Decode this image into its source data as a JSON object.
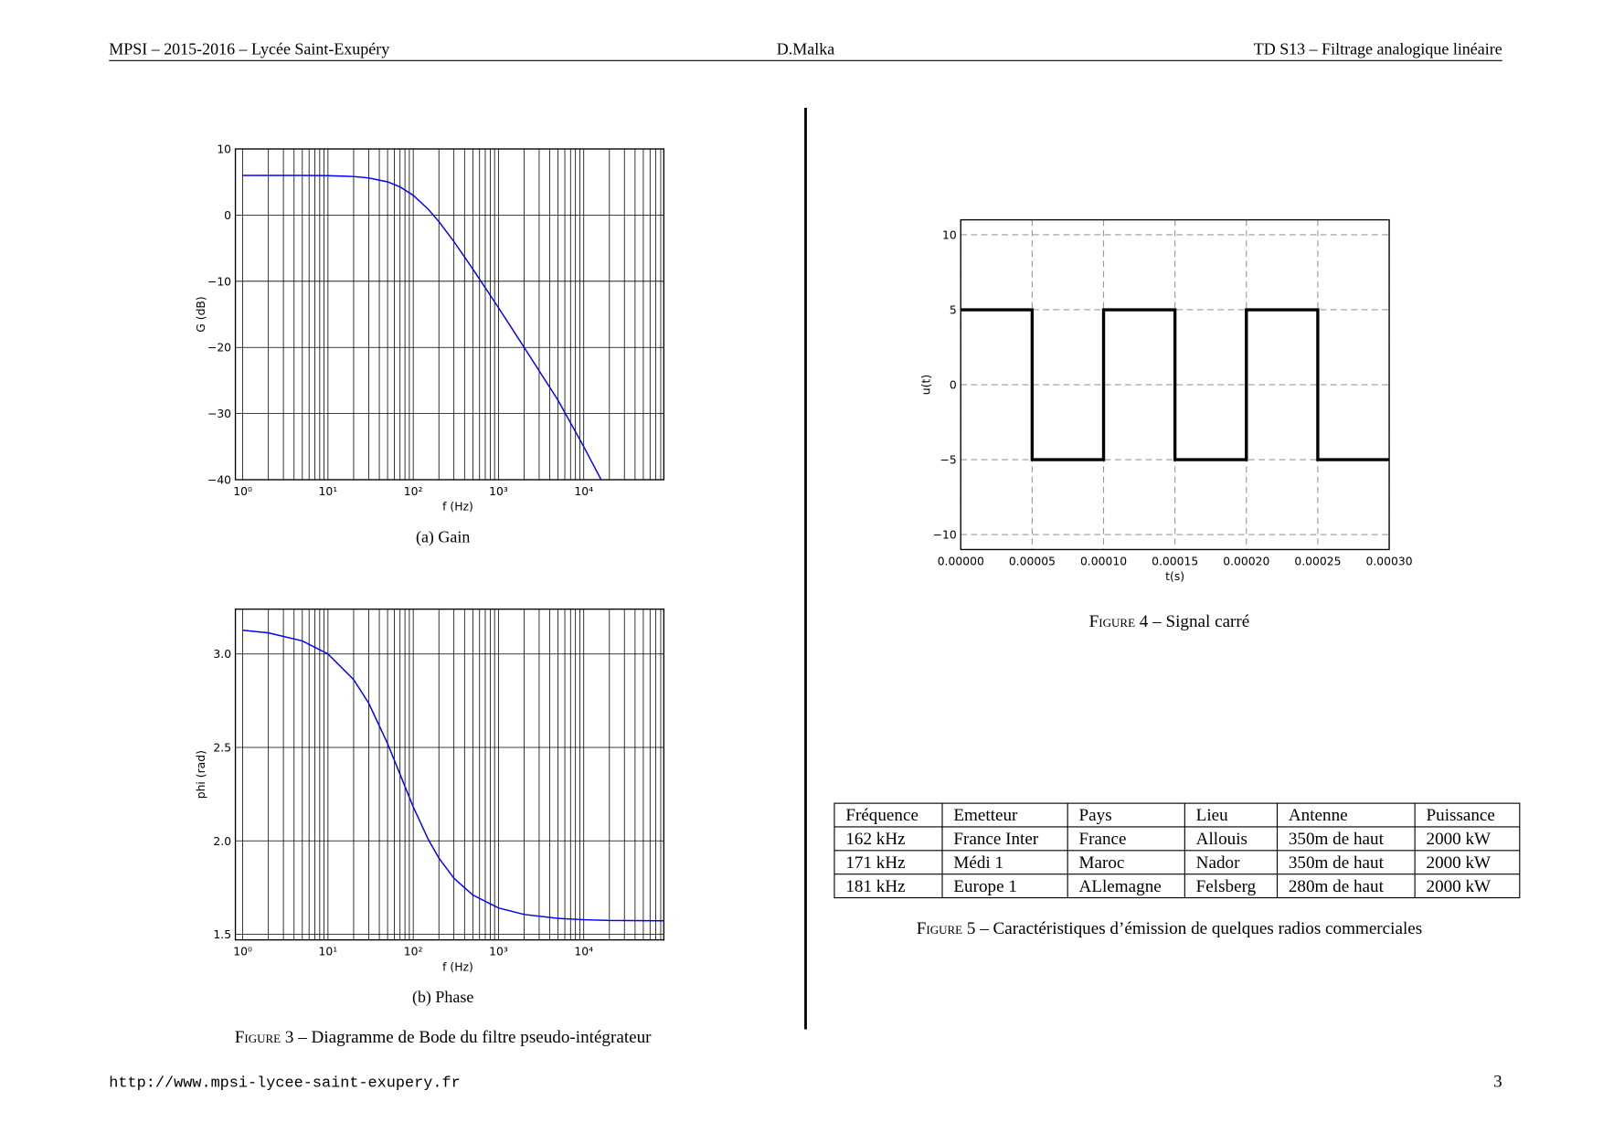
{
  "header": {
    "left": "MPSI – 2015-2016 – Lycée Saint-Exupéry",
    "center": "D.Malka",
    "right": "TD S13 – Filtrage analogique linéaire"
  },
  "chart_data": [
    {
      "type": "line",
      "xlabel": "f (Hz)",
      "ylabel": "G (dB)",
      "caption": "(a) Gain",
      "xscale": "log",
      "grid": "solid",
      "xlim": [
        0.82,
        87000
      ],
      "ylim": [
        -40,
        10
      ],
      "xticks": [
        {
          "value": 1,
          "label": "10⁰"
        },
        {
          "value": 10,
          "label": "10¹"
        },
        {
          "value": 100,
          "label": "10²"
        },
        {
          "value": 1000,
          "label": "10³"
        },
        {
          "value": 10000,
          "label": "10⁴"
        }
      ],
      "xticks_minor": [
        2,
        3,
        4,
        5,
        6,
        7,
        8,
        9,
        20,
        30,
        40,
        50,
        60,
        70,
        80,
        90,
        200,
        300,
        400,
        500,
        600,
        700,
        800,
        900,
        2000,
        3000,
        4000,
        5000,
        6000,
        7000,
        8000,
        9000,
        20000,
        30000,
        40000,
        50000,
        60000,
        70000,
        80000
      ],
      "yticks": [
        {
          "value": -40,
          "label": "−40"
        },
        {
          "value": -30,
          "label": "−30"
        },
        {
          "value": -20,
          "label": "−20"
        },
        {
          "value": -10,
          "label": "−10"
        },
        0,
        10
      ],
      "x": [
        1,
        2,
        5,
        10,
        20,
        30,
        50,
        70,
        100,
        150,
        200,
        300,
        500,
        1000,
        2000,
        5000,
        10000,
        16000
      ],
      "series": [
        {
          "color": "#0000ff",
          "values": [
            6.0,
            6.0,
            5.99,
            5.96,
            5.83,
            5.62,
            5.03,
            4.26,
            2.99,
            0.89,
            -0.99,
            -4.0,
            -8.15,
            -14.0,
            -20.0,
            -28.0,
            -35.0,
            -40.0
          ]
        }
      ]
    },
    {
      "type": "line",
      "xlabel": "f (Hz)",
      "ylabel": "phi (rad)",
      "caption": "(b) Phase",
      "xscale": "log",
      "grid": "solid",
      "xlim": [
        0.82,
        87000
      ],
      "ylim": [
        1.47,
        3.24
      ],
      "xticks": [
        {
          "value": 1,
          "label": "10⁰"
        },
        {
          "value": 10,
          "label": "10¹"
        },
        {
          "value": 100,
          "label": "10²"
        },
        {
          "value": 1000,
          "label": "10³"
        },
        {
          "value": 10000,
          "label": "10⁴"
        }
      ],
      "xticks_minor": [
        2,
        3,
        4,
        5,
        6,
        7,
        8,
        9,
        20,
        30,
        40,
        50,
        60,
        70,
        80,
        90,
        200,
        300,
        400,
        500,
        600,
        700,
        800,
        900,
        2000,
        3000,
        4000,
        5000,
        6000,
        7000,
        8000,
        9000,
        20000,
        30000,
        40000,
        50000,
        60000,
        70000,
        80000
      ],
      "yticks": [
        1.5,
        {
          "value": 2,
          "label": "2.0"
        },
        2.5,
        {
          "value": 3,
          "label": "3.0"
        }
      ],
      "x": [
        1,
        2,
        5,
        10,
        20,
        30,
        50,
        70,
        100,
        150,
        200,
        300,
        500,
        1000,
        2000,
        5000,
        10000,
        20000,
        87000
      ],
      "series": [
        {
          "color": "#0000ff",
          "values": [
            3.127,
            3.113,
            3.07,
            3.0,
            2.863,
            2.737,
            2.521,
            2.356,
            2.182,
            2.008,
            1.908,
            1.8,
            1.71,
            1.641,
            1.606,
            1.585,
            1.578,
            1.574,
            1.572
          ]
        }
      ]
    },
    {
      "type": "line",
      "xlabel": "t(s)",
      "ylabel": "u(t)",
      "xscale": "linear",
      "grid": "dashed",
      "xlim": [
        0,
        0.0003
      ],
      "ylim": [
        -11,
        11
      ],
      "xticks": [
        {
          "value": 0,
          "label": "0.00000"
        },
        {
          "value": 5e-05,
          "label": "0.00005"
        },
        {
          "value": 0.0001,
          "label": "0.00010"
        },
        {
          "value": 0.00015,
          "label": "0.00015"
        },
        {
          "value": 0.0002,
          "label": "0.00020"
        },
        {
          "value": 0.00025,
          "label": "0.00025"
        },
        {
          "value": 0.0003,
          "label": "0.00030"
        }
      ],
      "yticks": [
        {
          "value": -10,
          "label": "−10"
        },
        {
          "value": -5,
          "label": "−5"
        },
        0,
        5,
        10
      ],
      "x": [
        0,
        5e-05,
        5e-05,
        0.0001,
        0.0001,
        0.00015,
        0.00015,
        0.0002,
        0.0002,
        0.00025,
        0.00025,
        0.0003
      ],
      "series": [
        {
          "color": "#000000",
          "values": [
            5,
            5,
            -5,
            -5,
            5,
            5,
            -5,
            -5,
            5,
            5,
            -5,
            -5
          ]
        }
      ]
    }
  ],
  "figures": [
    {
      "label": "Figure 3",
      "text": "– Diagramme de Bode du filtre pseudo-intégrateur"
    },
    {
      "label": "Figure 4",
      "text": "– Signal carré"
    },
    {
      "label": "Figure 5",
      "text": "– Caractéristiques d’émission de quelques radios commerciales"
    }
  ],
  "table": {
    "header": [
      "Fréquence",
      "Emetteur",
      "Pays",
      "Lieu",
      "Antenne",
      "Puissance"
    ],
    "rows": [
      [
        "162 kHz",
        "France Inter",
        "France",
        "Allouis",
        "350m de haut",
        "2000 kW"
      ],
      [
        "171 kHz",
        "Médi 1",
        "Maroc",
        "Nador",
        "350m de haut",
        "2000 kW"
      ],
      [
        "181 kHz",
        "Europe 1",
        "ALlemagne",
        "Felsberg",
        "280m de haut",
        "2000 kW"
      ]
    ]
  },
  "footer": {
    "url": "http://www.mpsi-lycee-saint-exupery.fr",
    "page": 3
  }
}
